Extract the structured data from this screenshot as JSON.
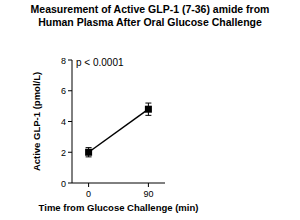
{
  "chart_data": {
    "type": "line",
    "title": [
      "Measurement of Active GLP-1 (7-36) amide from",
      "Human Plasma After Oral Glucose Challenge"
    ],
    "annotation": "p < 0.0001",
    "x_label": "Time from Glucose Challenge (min)",
    "y_label": "Active GLP-1 (pmol/L)",
    "x": [
      0,
      90
    ],
    "values": [
      2.0,
      4.8
    ],
    "errors": [
      0.3,
      0.4
    ],
    "color": "#000000",
    "marker": "square",
    "xlim": [
      -25,
      115
    ],
    "xticks": [
      0,
      90
    ],
    "ylim": [
      0,
      8
    ],
    "yticks": [
      0,
      2,
      4,
      6,
      8
    ],
    "grid": false
  }
}
